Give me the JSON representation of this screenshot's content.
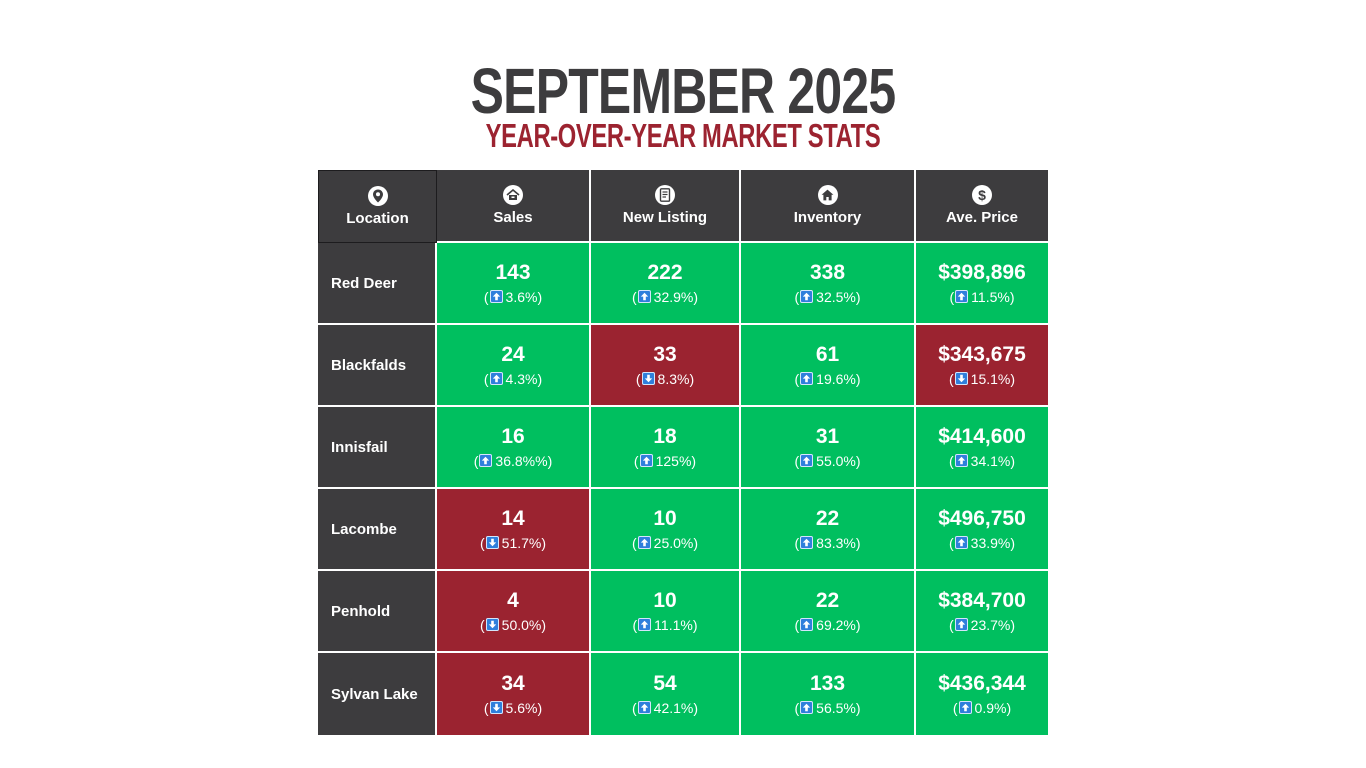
{
  "header": {
    "title": "SEPTEMBER 2025",
    "subtitle": "YEAR-OVER-YEAR MARKET STATS"
  },
  "columns": [
    {
      "label": "Location",
      "icon": "location-pin-icon"
    },
    {
      "label": "Sales",
      "icon": "house-sold-icon"
    },
    {
      "label": "New Listing",
      "icon": "listing-document-icon"
    },
    {
      "label": "Inventory",
      "icon": "home-icon"
    },
    {
      "label": "Ave. Price",
      "icon": "dollar-icon"
    }
  ],
  "rows": [
    {
      "location": "Red Deer",
      "cells": [
        {
          "value": "143",
          "change": "3.6%)",
          "direction": "up"
        },
        {
          "value": "222",
          "change": "32.9%)",
          "direction": "up"
        },
        {
          "value": "338",
          "change": "32.5%)",
          "direction": "up"
        },
        {
          "value": "$398,896",
          "change": "11.5%)",
          "direction": "up"
        }
      ]
    },
    {
      "location": "Blackfalds",
      "cells": [
        {
          "value": "24",
          "change": "4.3%)",
          "direction": "up"
        },
        {
          "value": "33",
          "change": "8.3%)",
          "direction": "down"
        },
        {
          "value": "61",
          "change": "19.6%)",
          "direction": "up"
        },
        {
          "value": "$343,675",
          "change": "15.1%)",
          "direction": "down"
        }
      ]
    },
    {
      "location": "Innisfail",
      "cells": [
        {
          "value": "16",
          "change": "36.8%%)",
          "direction": "up"
        },
        {
          "value": "18",
          "change": "125%)",
          "direction": "up"
        },
        {
          "value": "31",
          "change": "55.0%)",
          "direction": "up"
        },
        {
          "value": "$414,600",
          "change": "34.1%)",
          "direction": "up"
        }
      ]
    },
    {
      "location": "Lacombe",
      "cells": [
        {
          "value": "14",
          "change": "51.7%)",
          "direction": "down"
        },
        {
          "value": "10",
          "change": "25.0%)",
          "direction": "up"
        },
        {
          "value": "22",
          "change": "83.3%)",
          "direction": "up"
        },
        {
          "value": "$496,750",
          "change": "33.9%)",
          "direction": "up"
        }
      ]
    },
    {
      "location": "Penhold",
      "cells": [
        {
          "value": "4",
          "change": "50.0%)",
          "direction": "down"
        },
        {
          "value": "10",
          "change": "11.1%)",
          "direction": "up"
        },
        {
          "value": "22",
          "change": "69.2%)",
          "direction": "up"
        },
        {
          "value": "$384,700",
          "change": "23.7%)",
          "direction": "up"
        }
      ]
    },
    {
      "location": "Sylvan Lake",
      "cells": [
        {
          "value": "34",
          "change": "5.6%)",
          "direction": "down"
        },
        {
          "value": "54",
          "change": "42.1%)",
          "direction": "up"
        },
        {
          "value": "133",
          "change": "56.5%)",
          "direction": "up"
        },
        {
          "value": "$436,344",
          "change": "0.9%)",
          "direction": "up"
        }
      ]
    }
  ],
  "colors": {
    "increase": "#00bf5f",
    "decrease": "#9b2330",
    "header": "#3d3c3e",
    "title": "#3d3c3e",
    "subtitle": "#9c2330"
  }
}
